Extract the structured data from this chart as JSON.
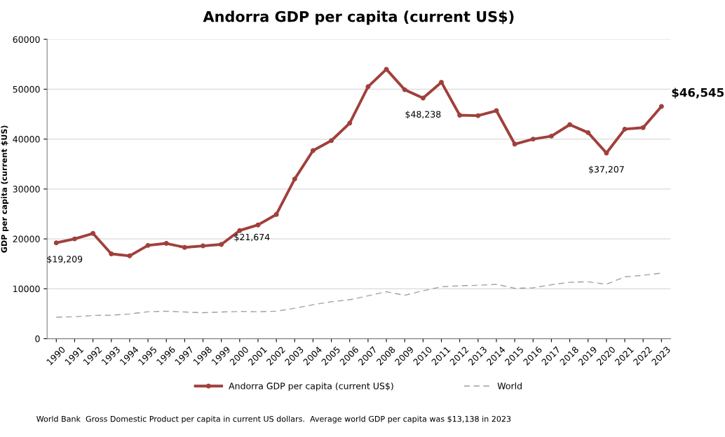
{
  "chart_data": {
    "type": "line",
    "title": "Andorra GDP per capita (current US$)",
    "ylabel": "GDP per capita (current $US)",
    "categories": [
      "1990",
      "1991",
      "1992",
      "1993",
      "1994",
      "1995",
      "1996",
      "1997",
      "1998",
      "1999",
      "2000",
      "2001",
      "2002",
      "2003",
      "2004",
      "2005",
      "2006",
      "2007",
      "2008",
      "2009",
      "2010",
      "2011",
      "2012",
      "2013",
      "2014",
      "2015",
      "2016",
      "2017",
      "2018",
      "2019",
      "2020",
      "2021",
      "2022",
      "2023"
    ],
    "series": [
      {
        "name": "Andorra GDP per capita (current US$)",
        "color": "#a0403c",
        "marker": "circle",
        "line_style": "solid",
        "values": [
          19209,
          20000,
          21100,
          17000,
          16600,
          18700,
          19100,
          18300,
          18600,
          18900,
          21674,
          22800,
          24900,
          32000,
          37700,
          39700,
          43200,
          50500,
          54000,
          49900,
          48238,
          51400,
          44800,
          44700,
          45700,
          39000,
          40000,
          40600,
          42900,
          41300,
          37207,
          42000,
          42300,
          46545
        ]
      },
      {
        "name": "World",
        "color": "#a0a0a0",
        "marker": "none",
        "line_style": "dashed",
        "values": [
          4300,
          4400,
          4650,
          4700,
          4950,
          5400,
          5500,
          5350,
          5200,
          5350,
          5450,
          5400,
          5500,
          6100,
          6800,
          7400,
          7800,
          8600,
          9400,
          8700,
          9600,
          10400,
          10600,
          10700,
          10900,
          10100,
          10200,
          10800,
          11300,
          11400,
          10900,
          12400,
          12700,
          13138
        ]
      }
    ],
    "ylim": [
      0,
      60000
    ],
    "yticks": [
      0,
      10000,
      20000,
      30000,
      40000,
      50000,
      60000
    ],
    "grid": "y",
    "legend": "bottom",
    "annotations": [
      {
        "text": "$19,209",
        "x": "1990",
        "y": 19209
      },
      {
        "text": "$21,674",
        "x": "2000",
        "y": 21674
      },
      {
        "text": "$48,238",
        "x": "2010",
        "y": 48238
      },
      {
        "text": "$37,207",
        "x": "2020",
        "y": 37207
      },
      {
        "text": "$46,545",
        "x": "2023",
        "y": 46545
      },
      "World Bank  Gross Domestic Product per capita in current US dollars.  Average world GDP per capita was $13,138 in 2023"
    ]
  }
}
